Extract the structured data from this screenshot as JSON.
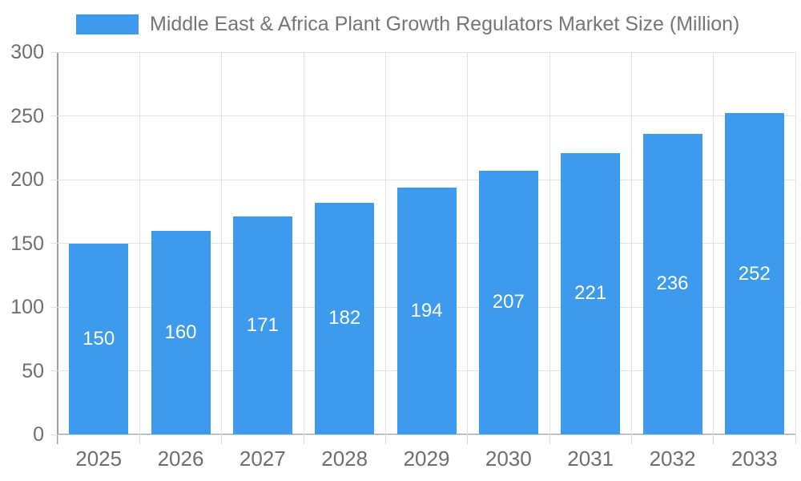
{
  "chart_data": {
    "type": "bar",
    "title": "Middle East & Africa Plant Growth Regulators Market Size (Million)",
    "categories": [
      "2025",
      "2026",
      "2027",
      "2028",
      "2029",
      "2030",
      "2031",
      "2032",
      "2033"
    ],
    "series": [
      {
        "name": "Middle East & Africa Plant Growth Regulators Market Size (Million)",
        "values": [
          150,
          160,
          171,
          182,
          194,
          207,
          221,
          236,
          252
        ],
        "color": "#3d9aec"
      }
    ],
    "xlabel": "",
    "ylabel": "",
    "ylim": [
      0,
      300
    ],
    "yticks": [
      0,
      50,
      100,
      150,
      200,
      250,
      300
    ],
    "grid": true,
    "legend_position": "top",
    "value_label_position": "inside-center",
    "colors": {
      "bar": "#3d9aec",
      "value_label_text": "#ffffff",
      "axis_line": "#9c9c9c",
      "grid_line": "#e4e4e4",
      "tick_text": "#6e6e6e",
      "title_text": "#757575",
      "background": "#ffffff"
    }
  }
}
